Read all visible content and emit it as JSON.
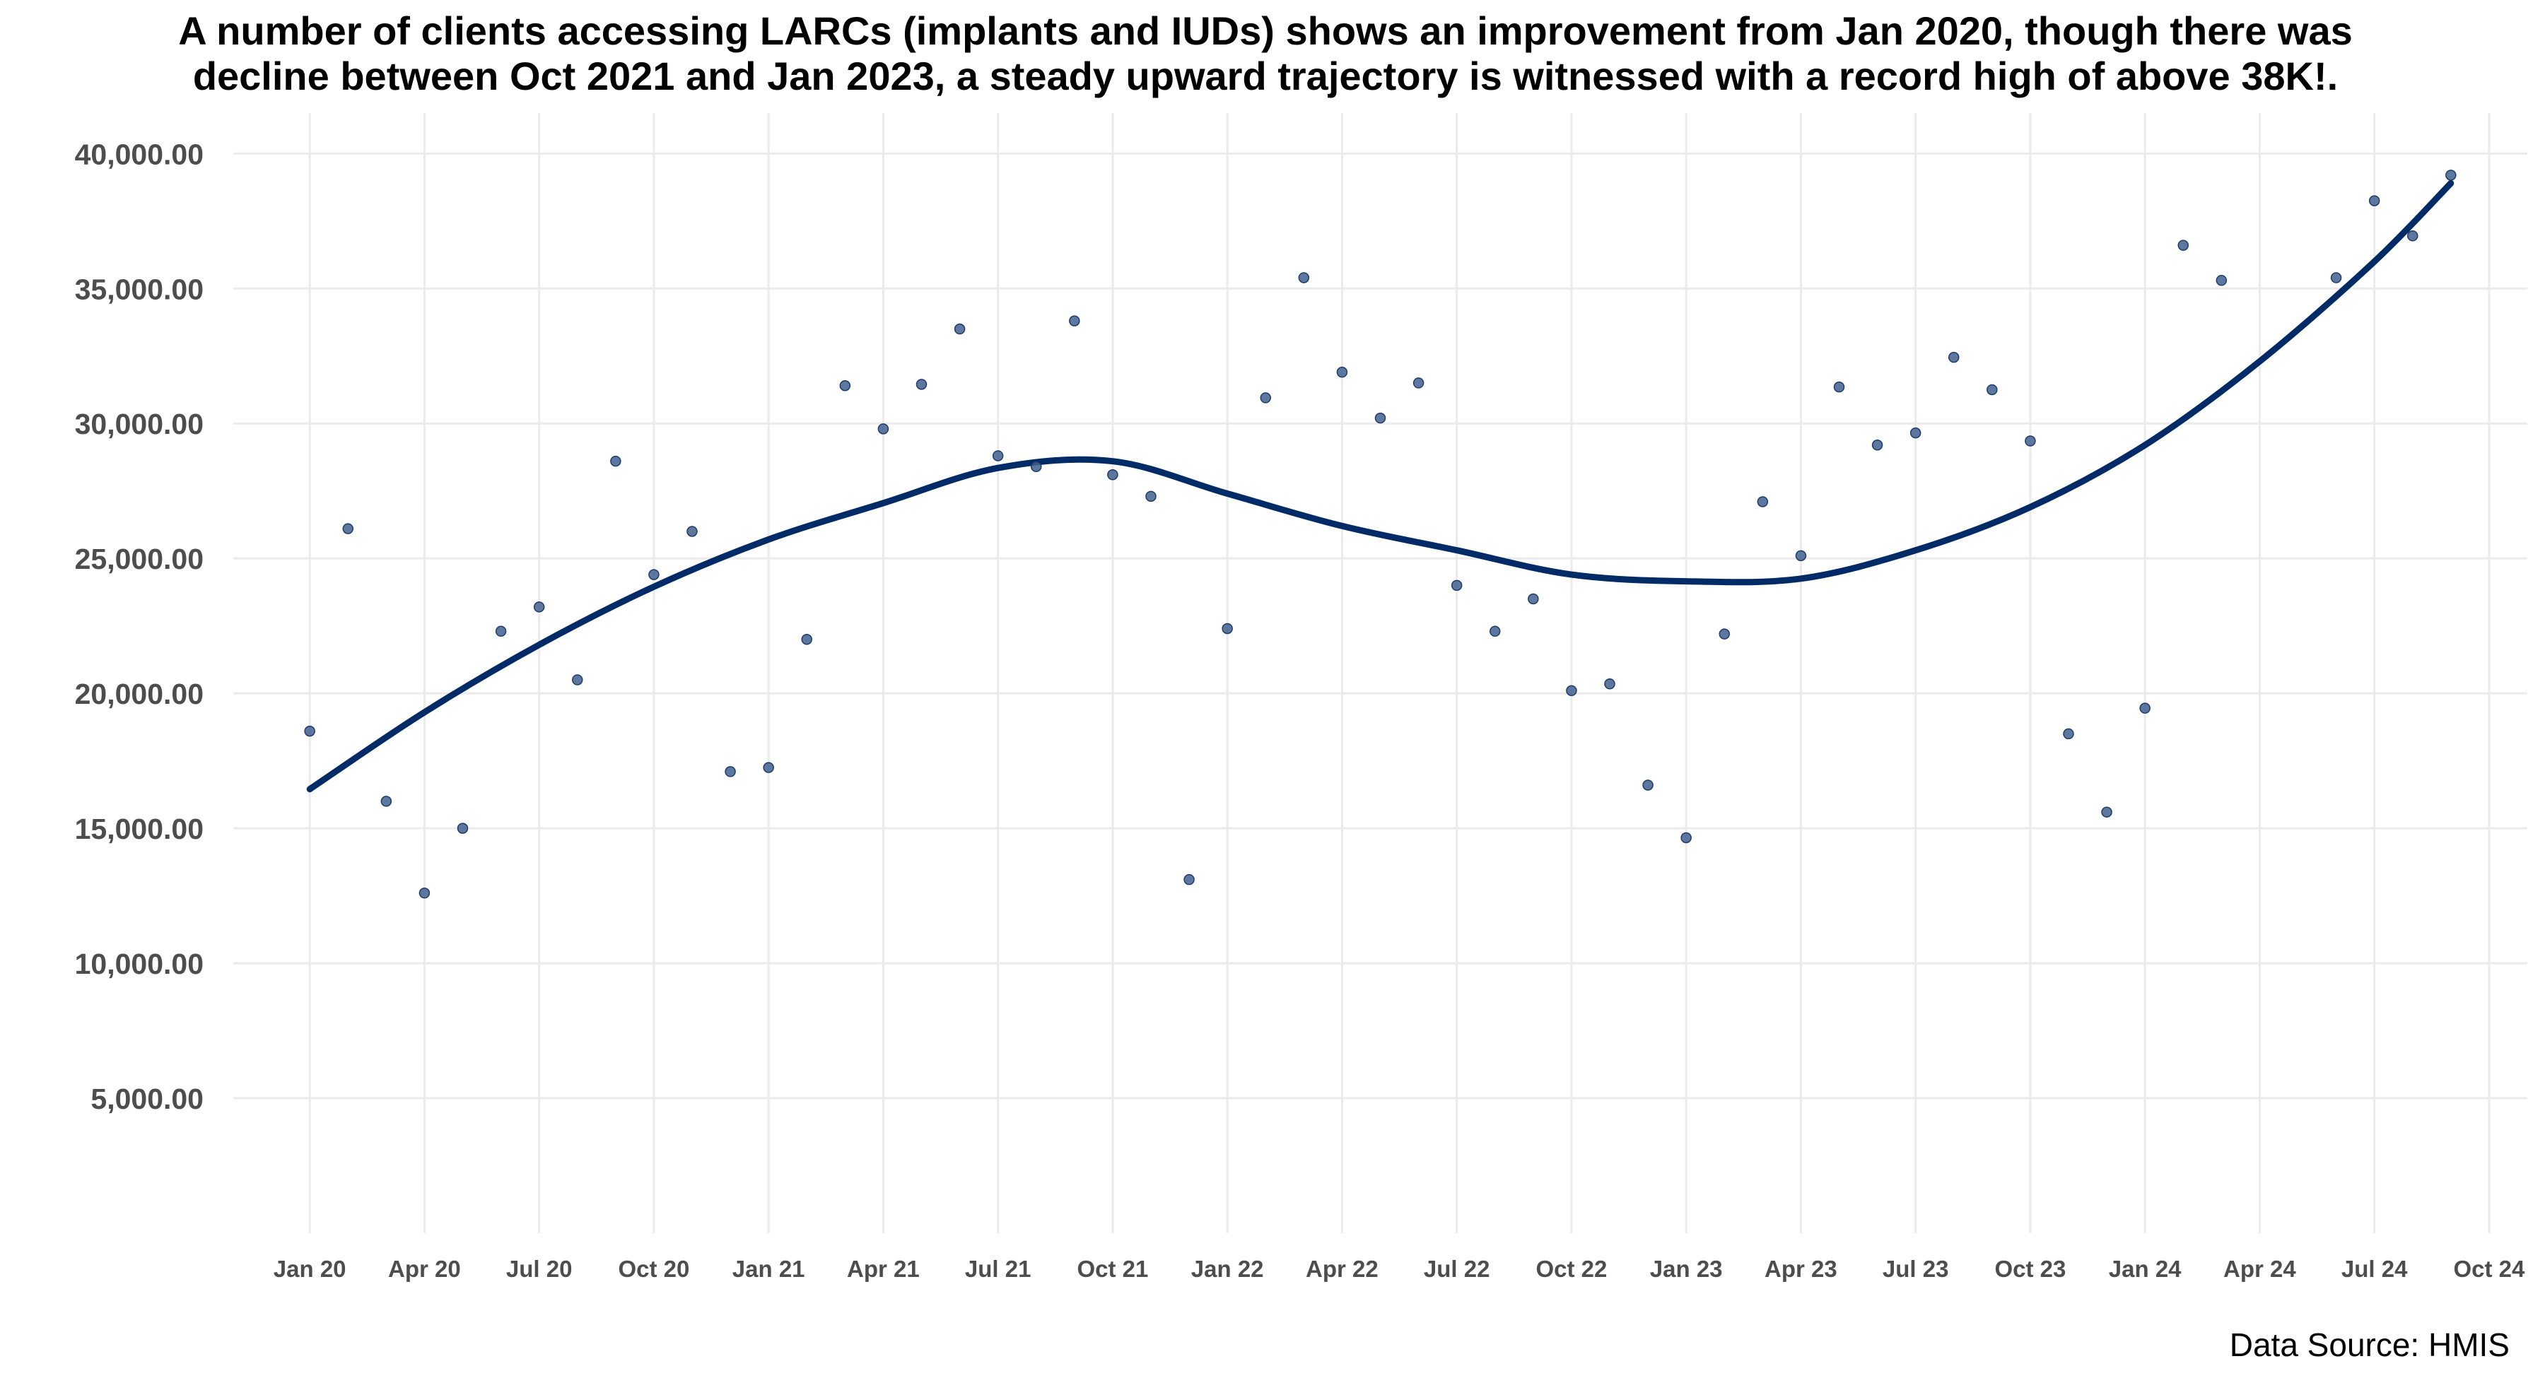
{
  "chart_data": {
    "type": "scatter",
    "title_lines": [
      "A number of clients accessing LARCs (implants and IUDs) shows an improvement from Jan 2020, though there was",
      "decline between Oct 2021 and Jan 2023, a steady upward trajectory is witnessed with a record high of above 38K!."
    ],
    "caption": "Data Source: HMIS",
    "xlabel": "",
    "ylabel": "",
    "xlim": [
      "2019-11",
      "2024-11"
    ],
    "ylim": [
      0,
      41500
    ],
    "grid": true,
    "legend": "none",
    "y_ticks": [
      5000,
      10000,
      15000,
      20000,
      25000,
      30000,
      35000,
      40000
    ],
    "y_tick_labels": [
      "5,000.00",
      "10,000.00",
      "15,000.00",
      "20,000.00",
      "25,000.00",
      "30,000.00",
      "35,000.00",
      "40,000.00"
    ],
    "x_ticks": [
      "2020-01",
      "2020-04",
      "2020-07",
      "2020-10",
      "2021-01",
      "2021-04",
      "2021-07",
      "2021-10",
      "2022-01",
      "2022-04",
      "2022-07",
      "2022-10",
      "2023-01",
      "2023-04",
      "2023-07",
      "2023-10",
      "2024-01",
      "2024-04",
      "2024-07",
      "2024-10"
    ],
    "x_tick_labels": [
      "Jan 20",
      "Apr 20",
      "Jul 20",
      "Oct 20",
      "Jan 21",
      "Apr 21",
      "Jul 21",
      "Oct 21",
      "Jan 22",
      "Apr 22",
      "Jul 22",
      "Oct 22",
      "Jan 23",
      "Apr 23",
      "Jul 23",
      "Oct 23",
      "Jan 24",
      "Apr 24",
      "Jul 24",
      "Oct 24"
    ],
    "series": [
      {
        "kind": "points",
        "x": [
          "2020-01",
          "2020-02",
          "2020-03",
          "2020-04",
          "2020-05",
          "2020-06",
          "2020-07",
          "2020-08",
          "2020-09",
          "2020-10",
          "2020-11",
          "2020-12",
          "2021-01",
          "2021-02",
          "2021-03",
          "2021-04",
          "2021-05",
          "2021-06",
          "2021-07",
          "2021-08",
          "2021-09",
          "2021-10",
          "2021-11",
          "2021-12",
          "2022-01",
          "2022-02",
          "2022-03",
          "2022-04",
          "2022-05",
          "2022-06",
          "2022-07",
          "2022-08",
          "2022-09",
          "2022-10",
          "2022-11",
          "2022-12",
          "2023-01",
          "2023-02",
          "2023-03",
          "2023-04",
          "2023-05",
          "2023-06",
          "2023-07",
          "2023-08",
          "2023-09",
          "2023-10",
          "2023-11",
          "2023-12",
          "2024-01",
          "2024-02",
          "2024-03",
          "2024-06",
          "2024-07",
          "2024-08",
          "2024-09"
        ],
        "y": [
          18600,
          26100,
          16000,
          12600,
          15000,
          22300,
          23200,
          20500,
          28600,
          24400,
          26000,
          17100,
          17250,
          22000,
          31400,
          29800,
          31450,
          33500,
          28800,
          28400,
          33800,
          28100,
          27300,
          13100,
          22400,
          30950,
          35400,
          31900,
          30200,
          31500,
          24000,
          22300,
          23500,
          20100,
          20350,
          16600,
          14650,
          22200,
          27100,
          25100,
          31350,
          29200,
          29650,
          32450,
          31250,
          29350,
          18500,
          15600,
          19450,
          36600,
          35300,
          35400,
          38250,
          36950,
          39200
        ],
        "color": "#3f6090"
      },
      {
        "kind": "trend",
        "x": [
          "2020-01",
          "2020-04",
          "2020-07",
          "2020-10",
          "2021-01",
          "2021-04",
          "2021-07",
          "2021-10",
          "2022-01",
          "2022-04",
          "2022-07",
          "2022-10",
          "2023-01",
          "2023-04",
          "2023-07",
          "2023-10",
          "2024-01",
          "2024-04",
          "2024-07",
          "2024-09"
        ],
        "y": [
          16450,
          19300,
          21800,
          23950,
          25700,
          27050,
          28350,
          28600,
          27400,
          26200,
          25300,
          24400,
          24150,
          24250,
          25300,
          26900,
          29200,
          32300,
          36000,
          38900
        ],
        "color": "#002b66"
      }
    ]
  }
}
